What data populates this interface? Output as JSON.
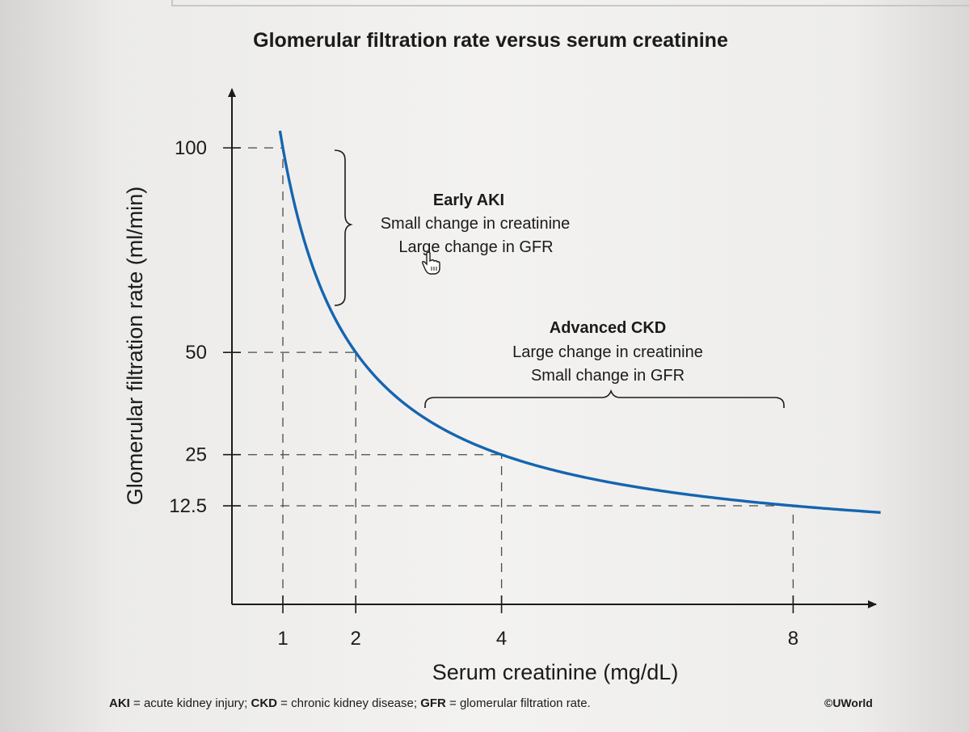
{
  "chart_data": {
    "type": "line",
    "title": "Glomerular filtration rate versus serum creatinine",
    "xlabel": "Serum creatinine (mg/dL)",
    "ylabel": "Glomerular filtration rate (ml/min)",
    "x_ticks": [
      1,
      2,
      4,
      8
    ],
    "y_ticks": [
      100,
      50,
      25,
      12.5
    ],
    "x_tick_labels": [
      "1",
      "2",
      "4",
      "8"
    ],
    "y_tick_labels": [
      "100",
      "50",
      "25",
      "12.5"
    ],
    "series": [
      {
        "name": "GFR",
        "color": "#1565b0",
        "relation": "GFR = 100 / creatinine",
        "x": [
          0.96,
          1,
          1.5,
          2,
          3,
          4,
          5,
          6,
          8,
          9.2
        ],
        "y": [
          104,
          100,
          66.7,
          50,
          33.3,
          25,
          20,
          16.7,
          12.5,
          10.9
        ]
      }
    ],
    "reference_points": [
      {
        "x": 1,
        "y": 100
      },
      {
        "x": 2,
        "y": 50
      },
      {
        "x": 4,
        "y": 25
      },
      {
        "x": 8,
        "y": 12.5
      }
    ],
    "annotations": [
      {
        "id": "early-aki",
        "heading": "Early AKI",
        "lines": [
          "Small change in creatinine",
          "Large change in GFR"
        ],
        "brace": "vertical",
        "y_range": [
          100,
          60
        ]
      },
      {
        "id": "advanced-ckd",
        "heading": "Advanced CKD",
        "lines": [
          "Large change in creatinine",
          "Small change in GFR"
        ],
        "brace": "horizontal",
        "x_range": [
          2.8,
          8
        ]
      }
    ]
  },
  "footer": {
    "aki_abbr": "AKI",
    "aki_def": " = acute kidney injury; ",
    "ckd_abbr": "CKD",
    "ckd_def": " =  chronic kidney disease; ",
    "gfr_abbr": "GFR",
    "gfr_def": " = glomerular filtration rate.",
    "copyright": "©UWorld"
  }
}
